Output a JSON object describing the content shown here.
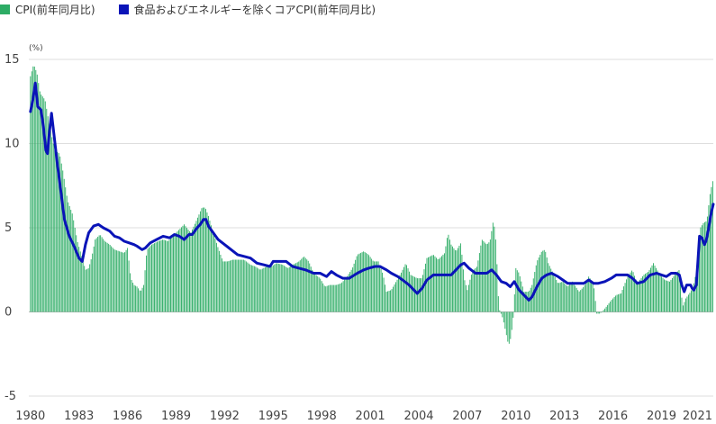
{
  "legend": {
    "cpi_label": "CPI(前年同月比)",
    "core_label": "食品およびエネルギーを除くコアCPI(前年同月比)"
  },
  "chart_data": {
    "type": "bar",
    "unit_label": "(%)",
    "ylim": [
      -5,
      15
    ],
    "yticks": [
      "15",
      "10",
      "5",
      "0",
      "-5"
    ],
    "ytick_values": [
      15,
      10,
      5,
      0,
      -5
    ],
    "xticks": [
      "1980",
      "1983",
      "1986",
      "1989",
      "1992",
      "1995",
      "1998",
      "2001",
      "2004",
      "2007",
      "2010",
      "2013",
      "2016",
      "2019",
      "2021"
    ],
    "xtick_values": [
      1980,
      1983,
      1986,
      1989,
      1992,
      1995,
      1998,
      2001,
      2004,
      2007,
      2010,
      2013,
      2016,
      2019,
      2021
    ],
    "x_start": 1979.9,
    "x_end": 2022.2,
    "colors": {
      "cpi": "#2dac65",
      "core": "#0a14b8",
      "grid": "#dddddd",
      "zero": "#bbbbbb"
    },
    "series": [
      {
        "name": "CPI(前年同月比)",
        "kind": "bar",
        "points": [
          [
            1980.0,
            14.0
          ],
          [
            1980.2,
            14.7
          ],
          [
            1980.4,
            14.2
          ],
          [
            1980.6,
            13.0
          ],
          [
            1980.9,
            12.6
          ],
          [
            1981.2,
            11.0
          ],
          [
            1981.5,
            9.6
          ],
          [
            1981.8,
            9.4
          ],
          [
            1982.0,
            8.4
          ],
          [
            1982.3,
            6.6
          ],
          [
            1982.6,
            5.8
          ],
          [
            1982.9,
            4.2
          ],
          [
            1983.2,
            3.2
          ],
          [
            1983.4,
            2.5
          ],
          [
            1983.6,
            2.6
          ],
          [
            1983.8,
            3.3
          ],
          [
            1984.0,
            4.3
          ],
          [
            1984.3,
            4.6
          ],
          [
            1984.6,
            4.2
          ],
          [
            1984.9,
            4.0
          ],
          [
            1985.2,
            3.7
          ],
          [
            1985.5,
            3.6
          ],
          [
            1985.8,
            3.5
          ],
          [
            1986.0,
            3.8
          ],
          [
            1986.2,
            2.0
          ],
          [
            1986.4,
            1.6
          ],
          [
            1986.6,
            1.5
          ],
          [
            1986.8,
            1.2
          ],
          [
            1987.0,
            1.6
          ],
          [
            1987.2,
            3.7
          ],
          [
            1987.5,
            4.0
          ],
          [
            1987.9,
            4.2
          ],
          [
            1988.2,
            4.3
          ],
          [
            1988.5,
            4.2
          ],
          [
            1988.9,
            4.6
          ],
          [
            1989.2,
            4.9
          ],
          [
            1989.5,
            5.2
          ],
          [
            1989.9,
            4.7
          ],
          [
            1990.2,
            5.3
          ],
          [
            1990.6,
            6.2
          ],
          [
            1990.8,
            6.2
          ],
          [
            1991.0,
            5.7
          ],
          [
            1991.3,
            4.7
          ],
          [
            1991.6,
            3.8
          ],
          [
            1991.9,
            3.0
          ],
          [
            1992.2,
            3.0
          ],
          [
            1992.5,
            3.1
          ],
          [
            1992.9,
            3.1
          ],
          [
            1993.2,
            3.1
          ],
          [
            1993.6,
            2.8
          ],
          [
            1993.9,
            2.7
          ],
          [
            1994.2,
            2.5
          ],
          [
            1994.6,
            2.7
          ],
          [
            1994.9,
            2.7
          ],
          [
            1995.2,
            2.9
          ],
          [
            1995.6,
            2.8
          ],
          [
            1995.9,
            2.6
          ],
          [
            1996.2,
            2.8
          ],
          [
            1996.6,
            3.0
          ],
          [
            1996.9,
            3.3
          ],
          [
            1997.2,
            3.0
          ],
          [
            1997.5,
            2.3
          ],
          [
            1997.9,
            2.0
          ],
          [
            1998.2,
            1.5
          ],
          [
            1998.5,
            1.6
          ],
          [
            1998.9,
            1.6
          ],
          [
            1999.2,
            1.7
          ],
          [
            1999.5,
            2.0
          ],
          [
            1999.9,
            2.6
          ],
          [
            2000.2,
            3.4
          ],
          [
            2000.6,
            3.6
          ],
          [
            2000.9,
            3.4
          ],
          [
            2001.2,
            3.0
          ],
          [
            2001.5,
            3.0
          ],
          [
            2001.8,
            2.2
          ],
          [
            2002.0,
            1.2
          ],
          [
            2002.3,
            1.3
          ],
          [
            2002.6,
            1.8
          ],
          [
            2002.9,
            2.3
          ],
          [
            2003.2,
            2.9
          ],
          [
            2003.5,
            2.2
          ],
          [
            2003.9,
            2.0
          ],
          [
            2004.2,
            2.0
          ],
          [
            2004.5,
            3.2
          ],
          [
            2004.9,
            3.4
          ],
          [
            2005.2,
            3.1
          ],
          [
            2005.6,
            3.5
          ],
          [
            2005.8,
            4.7
          ],
          [
            2006.0,
            4.0
          ],
          [
            2006.3,
            3.6
          ],
          [
            2006.6,
            4.1
          ],
          [
            2006.8,
            2.0
          ],
          [
            2007.0,
            1.3
          ],
          [
            2007.3,
            2.4
          ],
          [
            2007.6,
            2.7
          ],
          [
            2007.9,
            4.3
          ],
          [
            2008.2,
            4.0
          ],
          [
            2008.4,
            4.2
          ],
          [
            2008.6,
            5.4
          ],
          [
            2008.7,
            4.9
          ],
          [
            2008.8,
            3.7
          ],
          [
            2008.9,
            1.1
          ],
          [
            2009.0,
            0.1
          ],
          [
            2009.2,
            -0.4
          ],
          [
            2009.4,
            -1.3
          ],
          [
            2009.55,
            -2.0
          ],
          [
            2009.7,
            -1.5
          ],
          [
            2009.85,
            -0.2
          ],
          [
            2010.0,
            2.6
          ],
          [
            2010.2,
            2.3
          ],
          [
            2010.5,
            1.2
          ],
          [
            2010.8,
            1.2
          ],
          [
            2011.0,
            1.6
          ],
          [
            2011.3,
            3.0
          ],
          [
            2011.6,
            3.6
          ],
          [
            2011.8,
            3.7
          ],
          [
            2012.0,
            2.9
          ],
          [
            2012.3,
            2.3
          ],
          [
            2012.6,
            1.7
          ],
          [
            2012.9,
            1.8
          ],
          [
            2013.2,
            1.5
          ],
          [
            2013.5,
            1.8
          ],
          [
            2013.9,
            1.2
          ],
          [
            2014.2,
            1.5
          ],
          [
            2014.5,
            2.1
          ],
          [
            2014.8,
            1.7
          ],
          [
            2015.0,
            -0.1
          ],
          [
            2015.2,
            -0.1
          ],
          [
            2015.5,
            0.2
          ],
          [
            2015.9,
            0.7
          ],
          [
            2016.2,
            1.0
          ],
          [
            2016.5,
            1.1
          ],
          [
            2016.9,
            2.1
          ],
          [
            2017.2,
            2.5
          ],
          [
            2017.5,
            1.7
          ],
          [
            2017.9,
            2.2
          ],
          [
            2018.2,
            2.4
          ],
          [
            2018.5,
            2.9
          ],
          [
            2018.9,
            2.2
          ],
          [
            2019.2,
            1.9
          ],
          [
            2019.5,
            1.8
          ],
          [
            2019.9,
            2.3
          ],
          [
            2020.1,
            2.5
          ],
          [
            2020.3,
            0.3
          ],
          [
            2020.5,
            0.8
          ],
          [
            2020.8,
            1.2
          ],
          [
            2021.0,
            1.7
          ],
          [
            2021.2,
            2.6
          ],
          [
            2021.3,
            4.2
          ],
          [
            2021.4,
            5.0
          ],
          [
            2021.6,
            5.3
          ],
          [
            2021.8,
            5.4
          ],
          [
            2021.9,
            6.2
          ],
          [
            2022.0,
            7.0
          ],
          [
            2022.1,
            7.5
          ],
          [
            2022.2,
            7.9
          ]
        ]
      },
      {
        "name": "食品およびエネルギーを除くコアCPI(前年同月比)",
        "kind": "line",
        "points": [
          [
            1980.0,
            11.9
          ],
          [
            1980.15,
            12.6
          ],
          [
            1980.3,
            13.6
          ],
          [
            1980.45,
            12.2
          ],
          [
            1980.65,
            12.0
          ],
          [
            1980.8,
            11.0
          ],
          [
            1980.95,
            9.6
          ],
          [
            1981.05,
            9.4
          ],
          [
            1981.15,
            10.5
          ],
          [
            1981.3,
            11.8
          ],
          [
            1981.45,
            10.6
          ],
          [
            1981.65,
            8.9
          ],
          [
            1981.85,
            7.4
          ],
          [
            1982.1,
            5.5
          ],
          [
            1982.4,
            4.5
          ],
          [
            1982.7,
            3.9
          ],
          [
            1983.0,
            3.2
          ],
          [
            1983.2,
            3.0
          ],
          [
            1983.4,
            4.0
          ],
          [
            1983.6,
            4.7
          ],
          [
            1983.9,
            5.1
          ],
          [
            1984.2,
            5.2
          ],
          [
            1984.5,
            5.0
          ],
          [
            1984.9,
            4.8
          ],
          [
            1985.2,
            4.5
          ],
          [
            1985.5,
            4.4
          ],
          [
            1985.8,
            4.2
          ],
          [
            1986.1,
            4.1
          ],
          [
            1986.4,
            4.0
          ],
          [
            1986.6,
            3.9
          ],
          [
            1986.9,
            3.7
          ],
          [
            1987.1,
            3.8
          ],
          [
            1987.4,
            4.1
          ],
          [
            1987.8,
            4.3
          ],
          [
            1988.2,
            4.5
          ],
          [
            1988.6,
            4.4
          ],
          [
            1988.9,
            4.6
          ],
          [
            1989.2,
            4.5
          ],
          [
            1989.5,
            4.3
          ],
          [
            1989.8,
            4.6
          ],
          [
            1990.0,
            4.6
          ],
          [
            1990.3,
            5.0
          ],
          [
            1990.5,
            5.2
          ],
          [
            1990.7,
            5.5
          ],
          [
            1990.85,
            5.5
          ],
          [
            1991.0,
            5.1
          ],
          [
            1991.3,
            4.7
          ],
          [
            1991.6,
            4.3
          ],
          [
            1992.0,
            4.0
          ],
          [
            1992.4,
            3.7
          ],
          [
            1992.8,
            3.4
          ],
          [
            1993.2,
            3.3
          ],
          [
            1993.6,
            3.2
          ],
          [
            1994.0,
            2.9
          ],
          [
            1994.4,
            2.8
          ],
          [
            1994.8,
            2.7
          ],
          [
            1995.0,
            3.0
          ],
          [
            1995.4,
            3.0
          ],
          [
            1995.8,
            3.0
          ],
          [
            1996.2,
            2.7
          ],
          [
            1996.6,
            2.6
          ],
          [
            1997.0,
            2.5
          ],
          [
            1997.5,
            2.3
          ],
          [
            1997.9,
            2.3
          ],
          [
            1998.3,
            2.1
          ],
          [
            1998.6,
            2.4
          ],
          [
            1998.9,
            2.2
          ],
          [
            1999.3,
            2.0
          ],
          [
            1999.7,
            2.0
          ],
          [
            2000.2,
            2.3
          ],
          [
            2000.6,
            2.5
          ],
          [
            2000.9,
            2.6
          ],
          [
            2001.3,
            2.7
          ],
          [
            2001.6,
            2.7
          ],
          [
            2002.0,
            2.5
          ],
          [
            2002.3,
            2.3
          ],
          [
            2002.7,
            2.1
          ],
          [
            2003.0,
            1.9
          ],
          [
            2003.4,
            1.6
          ],
          [
            2003.7,
            1.3
          ],
          [
            2003.9,
            1.1
          ],
          [
            2004.2,
            1.4
          ],
          [
            2004.5,
            1.9
          ],
          [
            2004.9,
            2.2
          ],
          [
            2005.3,
            2.2
          ],
          [
            2005.7,
            2.2
          ],
          [
            2006.0,
            2.2
          ],
          [
            2006.3,
            2.5
          ],
          [
            2006.6,
            2.8
          ],
          [
            2006.8,
            2.9
          ],
          [
            2007.1,
            2.6
          ],
          [
            2007.5,
            2.3
          ],
          [
            2007.9,
            2.3
          ],
          [
            2008.2,
            2.3
          ],
          [
            2008.5,
            2.5
          ],
          [
            2008.8,
            2.2
          ],
          [
            2009.1,
            1.8
          ],
          [
            2009.4,
            1.7
          ],
          [
            2009.65,
            1.5
          ],
          [
            2009.9,
            1.8
          ],
          [
            2010.2,
            1.3
          ],
          [
            2010.5,
            1.0
          ],
          [
            2010.8,
            0.7
          ],
          [
            2011.0,
            0.9
          ],
          [
            2011.3,
            1.5
          ],
          [
            2011.6,
            2.0
          ],
          [
            2011.9,
            2.2
          ],
          [
            2012.2,
            2.3
          ],
          [
            2012.6,
            2.1
          ],
          [
            2012.9,
            1.9
          ],
          [
            2013.2,
            1.7
          ],
          [
            2013.5,
            1.7
          ],
          [
            2013.9,
            1.7
          ],
          [
            2014.2,
            1.7
          ],
          [
            2014.5,
            1.9
          ],
          [
            2014.8,
            1.7
          ],
          [
            2015.1,
            1.7
          ],
          [
            2015.5,
            1.8
          ],
          [
            2015.9,
            2.0
          ],
          [
            2016.2,
            2.2
          ],
          [
            2016.5,
            2.2
          ],
          [
            2016.9,
            2.2
          ],
          [
            2017.2,
            2.0
          ],
          [
            2017.5,
            1.7
          ],
          [
            2017.9,
            1.8
          ],
          [
            2018.3,
            2.2
          ],
          [
            2018.7,
            2.3
          ],
          [
            2019.0,
            2.2
          ],
          [
            2019.3,
            2.1
          ],
          [
            2019.6,
            2.3
          ],
          [
            2019.9,
            2.3
          ],
          [
            2020.1,
            2.2
          ],
          [
            2020.25,
            1.6
          ],
          [
            2020.4,
            1.2
          ],
          [
            2020.55,
            1.6
          ],
          [
            2020.8,
            1.6
          ],
          [
            2020.9,
            1.4
          ],
          [
            2021.0,
            1.3
          ],
          [
            2021.15,
            1.6
          ],
          [
            2021.25,
            3.0
          ],
          [
            2021.35,
            4.5
          ],
          [
            2021.5,
            4.4
          ],
          [
            2021.65,
            4.0
          ],
          [
            2021.75,
            4.2
          ],
          [
            2021.9,
            4.9
          ],
          [
            2022.0,
            5.5
          ],
          [
            2022.1,
            6.0
          ],
          [
            2022.2,
            6.4
          ]
        ]
      }
    ]
  }
}
